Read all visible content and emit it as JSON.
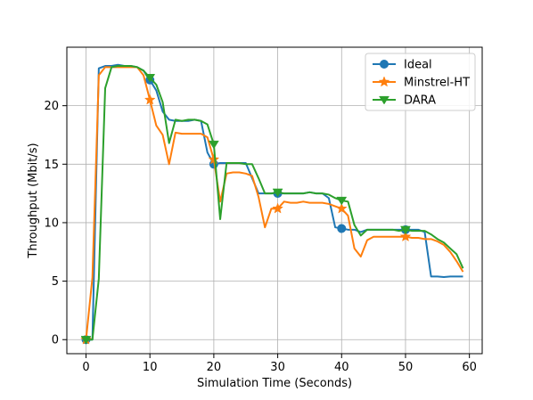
{
  "chart_data": {
    "type": "line",
    "title": "",
    "xlabel": "Simulation Time (Seconds)",
    "ylabel": "Throughput (Mbit/s)",
    "xlim": [
      -3,
      62
    ],
    "ylim": [
      -1.2,
      25.0
    ],
    "xticks": [
      0,
      10,
      20,
      30,
      40,
      50,
      60
    ],
    "yticks": [
      0,
      5,
      10,
      15,
      20
    ],
    "grid": true,
    "legend_position": "top-right",
    "series": [
      {
        "name": "Ideal",
        "color": "#1f77b4",
        "marker": "circle",
        "x": [
          0,
          1,
          2,
          3,
          4,
          5,
          6,
          7,
          8,
          9,
          10,
          11,
          12,
          13,
          14,
          15,
          16,
          17,
          18,
          19,
          20,
          21,
          22,
          23,
          24,
          25,
          26,
          27,
          28,
          29,
          30,
          31,
          32,
          33,
          34,
          35,
          36,
          37,
          38,
          39,
          40,
          41,
          42,
          43,
          44,
          45,
          46,
          47,
          48,
          49,
          50,
          51,
          52,
          53,
          54,
          55,
          56,
          57,
          58,
          59
        ],
        "y": [
          0,
          0,
          23.2,
          23.4,
          23.4,
          23.5,
          23.4,
          23.4,
          23.3,
          23.0,
          22.2,
          21.3,
          19.5,
          18.8,
          18.7,
          18.7,
          18.7,
          18.8,
          18.7,
          16.0,
          15.0,
          15.1,
          15.1,
          15.1,
          15.1,
          15.1,
          13.8,
          12.5,
          12.5,
          12.5,
          12.5,
          12.5,
          12.5,
          12.5,
          12.5,
          12.6,
          12.5,
          12.5,
          12.1,
          9.6,
          9.5,
          9.4,
          9.4,
          9.2,
          9.4,
          9.4,
          9.4,
          9.4,
          9.4,
          9.4,
          9.4,
          9.4,
          9.4,
          9.2,
          5.4,
          5.4,
          5.35,
          5.4,
          5.4,
          5.4
        ],
        "marker_x": [
          0,
          10,
          20,
          30,
          40,
          50
        ]
      },
      {
        "name": "Minstrel-HT",
        "color": "#ff7f0e",
        "marker": "star",
        "x": [
          0,
          1,
          2,
          3,
          4,
          5,
          6,
          7,
          8,
          9,
          10,
          11,
          12,
          13,
          14,
          15,
          16,
          17,
          18,
          19,
          20,
          21,
          22,
          23,
          24,
          25,
          26,
          27,
          28,
          29,
          30,
          31,
          32,
          33,
          34,
          35,
          36,
          37,
          38,
          39,
          40,
          41,
          42,
          43,
          44,
          45,
          46,
          47,
          48,
          49,
          50,
          51,
          52,
          53,
          54,
          55,
          56,
          57,
          58,
          59
        ],
        "y": [
          0,
          5.3,
          22.6,
          23.3,
          23.3,
          23.3,
          23.3,
          23.3,
          23.3,
          22.6,
          20.5,
          18.3,
          17.5,
          15.0,
          17.7,
          17.6,
          17.6,
          17.6,
          17.6,
          17.3,
          15.4,
          11.8,
          14.2,
          14.3,
          14.3,
          14.2,
          14.0,
          12.2,
          9.6,
          11.2,
          11.2,
          11.8,
          11.7,
          11.7,
          11.8,
          11.7,
          11.7,
          11.7,
          11.6,
          11.4,
          11.2,
          10.6,
          7.8,
          7.1,
          8.5,
          8.8,
          8.8,
          8.8,
          8.8,
          8.8,
          8.8,
          8.7,
          8.7,
          8.6,
          8.6,
          8.4,
          8.1,
          7.5,
          6.7,
          5.8
        ],
        "marker_x": [
          0,
          10,
          20,
          30,
          40,
          50
        ]
      },
      {
        "name": "DARA",
        "color": "#2ca02c",
        "marker": "triangle-down",
        "x": [
          0,
          1,
          2,
          3,
          4,
          5,
          6,
          7,
          8,
          9,
          10,
          11,
          12,
          13,
          14,
          15,
          16,
          17,
          18,
          19,
          20,
          21,
          22,
          23,
          24,
          25,
          26,
          27,
          28,
          29,
          30,
          31,
          32,
          33,
          34,
          35,
          36,
          37,
          38,
          39,
          40,
          41,
          42,
          43,
          44,
          45,
          46,
          47,
          48,
          49,
          50,
          51,
          52,
          53,
          54,
          55,
          56,
          57,
          58,
          59
        ],
        "y": [
          0,
          0,
          5.2,
          21.5,
          23.3,
          23.4,
          23.4,
          23.4,
          23.3,
          23.0,
          22.4,
          21.8,
          20.3,
          16.8,
          18.8,
          18.7,
          18.8,
          18.8,
          18.7,
          18.4,
          16.7,
          10.3,
          15.1,
          15.1,
          15.1,
          15.0,
          15.0,
          13.8,
          12.5,
          12.5,
          12.6,
          12.5,
          12.5,
          12.5,
          12.5,
          12.6,
          12.5,
          12.5,
          12.4,
          12.1,
          11.9,
          11.8,
          9.8,
          8.9,
          9.4,
          9.4,
          9.4,
          9.4,
          9.4,
          9.3,
          9.4,
          9.3,
          9.3,
          9.3,
          9.0,
          8.6,
          8.3,
          7.8,
          7.3,
          6.1
        ],
        "marker_x": [
          0,
          10,
          20,
          30,
          40,
          50
        ]
      }
    ]
  }
}
